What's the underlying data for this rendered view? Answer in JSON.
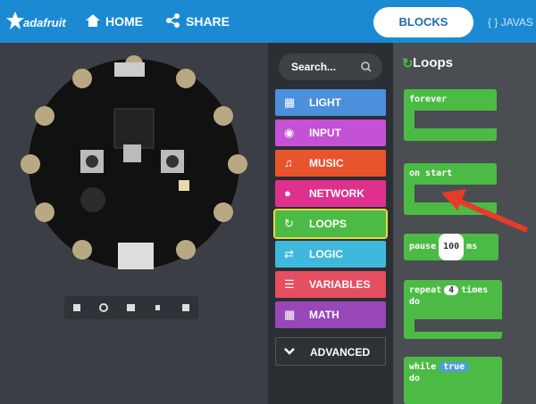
{
  "header": {
    "logo": "adafruit",
    "nav": [
      "HOME",
      "SHARE"
    ],
    "tabs": [
      "BLOCKS",
      "{ } JAVAS"
    ]
  },
  "toolbox": {
    "search": "Search...",
    "categories": [
      "LIGHT",
      "INPUT",
      "MUSIC",
      "NETWORK",
      "LOOPS",
      "LOGIC",
      "VARIABLES",
      "MATH"
    ],
    "advanced": "ADVANCED"
  },
  "flyout": {
    "title": "Loops",
    "blocks": [
      {
        "label": "forever"
      },
      {
        "label": "on start"
      },
      {
        "label": "pause",
        "value": "100",
        "unit": "ms"
      },
      {
        "label": "repeat",
        "value": "4",
        "unit": "times",
        "body": "do"
      },
      {
        "label": "while",
        "value": "true",
        "body": "do"
      }
    ]
  }
}
